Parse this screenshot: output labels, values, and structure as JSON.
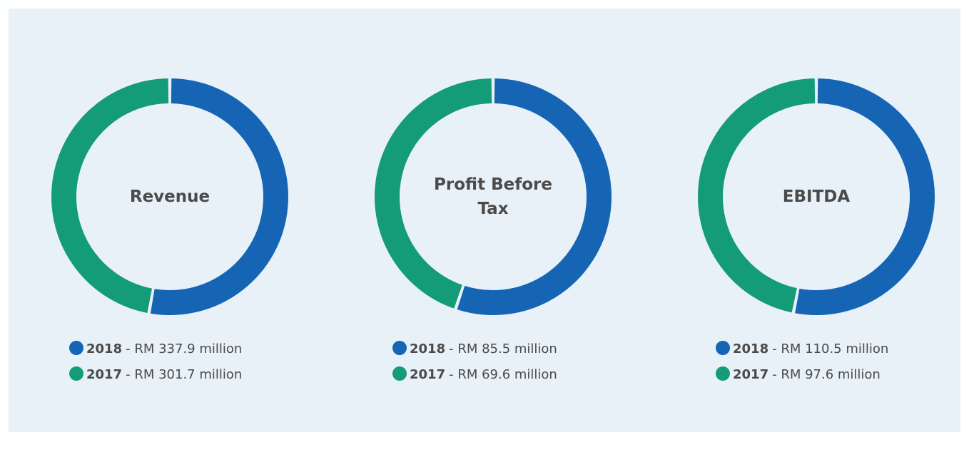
{
  "chart_data": [
    {
      "type": "donut",
      "title": "Revenue",
      "series": [
        {
          "name": "2018",
          "color": "#1565b4",
          "values": [
            337.9
          ],
          "value_labels": [
            "- RM 337.9 million"
          ]
        },
        {
          "name": "2017",
          "color": "#149b78",
          "values": [
            301.7
          ],
          "value_labels": [
            "- RM 301.7 million"
          ]
        }
      ]
    },
    {
      "type": "donut",
      "title": "Profit Before Tax",
      "series": [
        {
          "name": "2018",
          "color": "#1565b4",
          "values": [
            85.5
          ],
          "value_labels": [
            "- RM 85.5 million"
          ]
        },
        {
          "name": "2017",
          "color": "#149b78",
          "values": [
            69.6
          ],
          "value_labels": [
            "- RM 69.6 million"
          ]
        }
      ]
    },
    {
      "type": "donut",
      "title": "EBITDA",
      "series": [
        {
          "name": "2018",
          "color": "#1565b4",
          "values": [
            110.5
          ],
          "value_labels": [
            "- RM 110.5 million"
          ]
        },
        {
          "name": "2017",
          "color": "#149b78",
          "values": [
            97.6
          ],
          "value_labels": [
            "- RM 97.6 million"
          ]
        }
      ]
    }
  ]
}
